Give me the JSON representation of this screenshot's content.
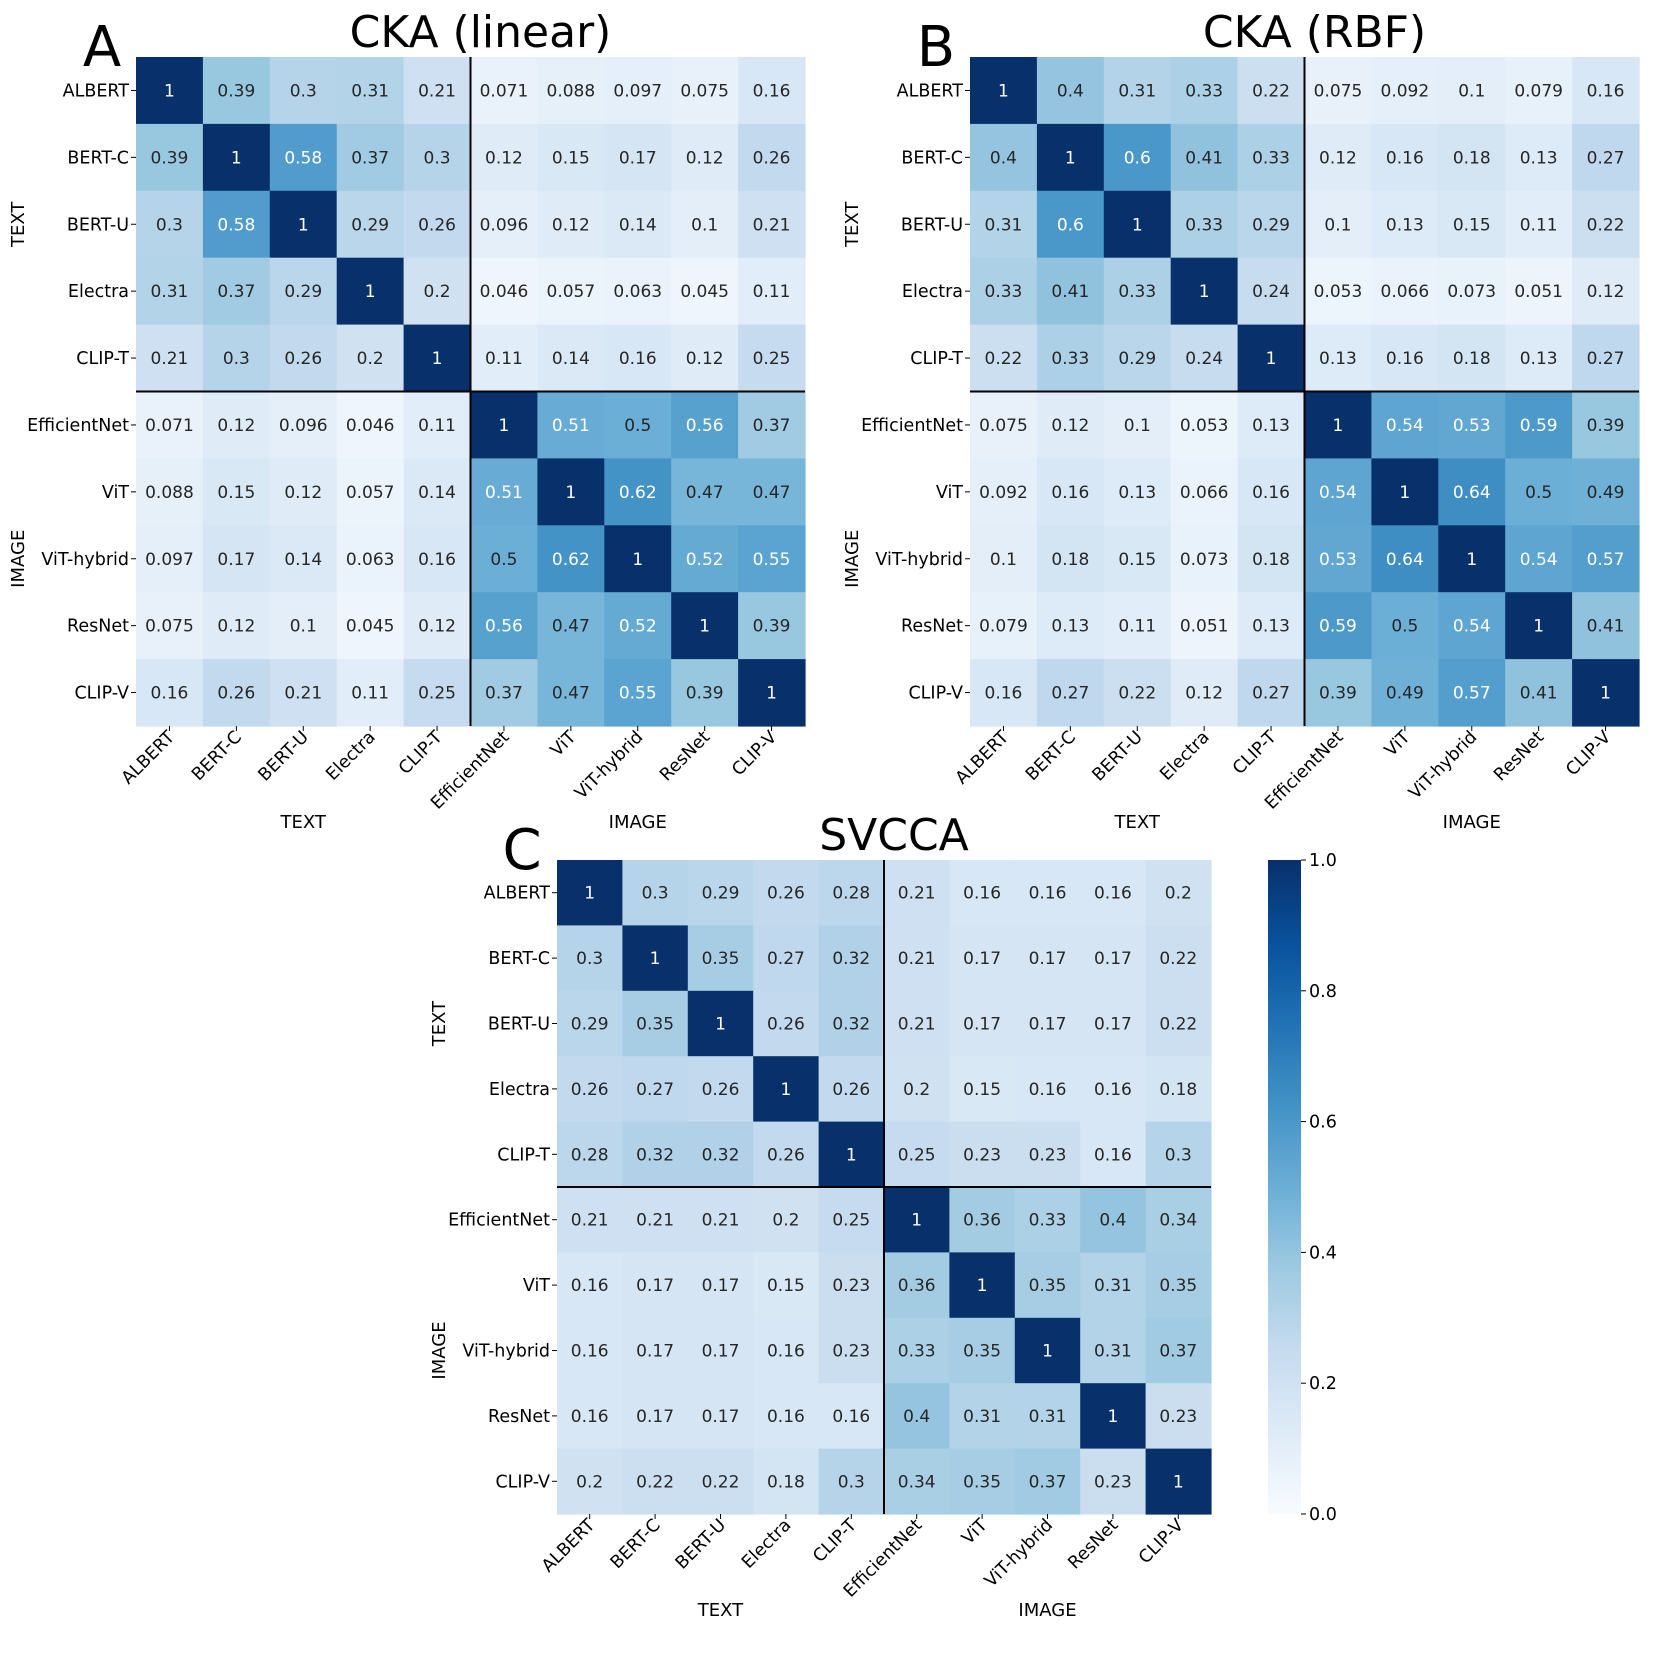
{
  "figure": {
    "panel_letters": [
      "A",
      "B",
      "C"
    ],
    "colorbar": {
      "min": 0.0,
      "max": 1.0,
      "ticks": [
        "0.0",
        "0.2",
        "0.4",
        "0.6",
        "0.8",
        "1.0"
      ],
      "colormap": "Blues",
      "colors": [
        "#f7fbff",
        "#deebf7",
        "#c6dbef",
        "#9ecae1",
        "#6baed6",
        "#4292c6",
        "#2171b5",
        "#08519c",
        "#08306b"
      ]
    }
  },
  "chart_data": [
    {
      "type": "heatmap",
      "panel": "A",
      "title": "CKA (linear)",
      "rows": [
        "ALBERT",
        "BERT-C",
        "BERT-U",
        "Electra",
        "CLIP-T",
        "EfficientNet",
        "ViT",
        "ViT-hybrid",
        "ResNet",
        "CLIP-V"
      ],
      "columns": [
        "ALBERT",
        "BERT-C",
        "BERT-U",
        "Electra",
        "CLIP-T",
        "EfficientNet",
        "ViT",
        "ViT-hybrid",
        "ResNet",
        "CLIP-V"
      ],
      "xlabel_groups": [
        "TEXT",
        "IMAGE"
      ],
      "ylabel_groups": [
        "TEXT",
        "IMAGE"
      ],
      "values": [
        [
          "1",
          "0.39",
          "0.3",
          "0.31",
          "0.21",
          "0.071",
          "0.088",
          "0.097",
          "0.075",
          "0.16"
        ],
        [
          "0.39",
          "1",
          "0.58",
          "0.37",
          "0.3",
          "0.12",
          "0.15",
          "0.17",
          "0.12",
          "0.26"
        ],
        [
          "0.3",
          "0.58",
          "1",
          "0.29",
          "0.26",
          "0.096",
          "0.12",
          "0.14",
          "0.1",
          "0.21"
        ],
        [
          "0.31",
          "0.37",
          "0.29",
          "1",
          "0.2",
          "0.046",
          "0.057",
          "0.063",
          "0.045",
          "0.11"
        ],
        [
          "0.21",
          "0.3",
          "0.26",
          "0.2",
          "1",
          "0.11",
          "0.14",
          "0.16",
          "0.12",
          "0.25"
        ],
        [
          "0.071",
          "0.12",
          "0.096",
          "0.046",
          "0.11",
          "1",
          "0.51",
          "0.5",
          "0.56",
          "0.37"
        ],
        [
          "0.088",
          "0.15",
          "0.12",
          "0.057",
          "0.14",
          "0.51",
          "1",
          "0.62",
          "0.47",
          "0.47"
        ],
        [
          "0.097",
          "0.17",
          "0.14",
          "0.063",
          "0.16",
          "0.5",
          "0.62",
          "1",
          "0.52",
          "0.55"
        ],
        [
          "0.075",
          "0.12",
          "0.1",
          "0.045",
          "0.12",
          "0.56",
          "0.47",
          "0.52",
          "1",
          "0.39"
        ],
        [
          "0.16",
          "0.26",
          "0.21",
          "0.11",
          "0.25",
          "0.37",
          "0.47",
          "0.55",
          "0.39",
          "1"
        ]
      ]
    },
    {
      "type": "heatmap",
      "panel": "B",
      "title": "CKA (RBF)",
      "rows": [
        "ALBERT",
        "BERT-C",
        "BERT-U",
        "Electra",
        "CLIP-T",
        "EfficientNet",
        "ViT",
        "ViT-hybrid",
        "ResNet",
        "CLIP-V"
      ],
      "columns": [
        "ALBERT",
        "BERT-C",
        "BERT-U",
        "Electra",
        "CLIP-T",
        "EfficientNet",
        "ViT",
        "ViT-hybrid",
        "ResNet",
        "CLIP-V"
      ],
      "xlabel_groups": [
        "TEXT",
        "IMAGE"
      ],
      "ylabel_groups": [
        "TEXT",
        "IMAGE"
      ],
      "values": [
        [
          "1",
          "0.4",
          "0.31",
          "0.33",
          "0.22",
          "0.075",
          "0.092",
          "0.1",
          "0.079",
          "0.16"
        ],
        [
          "0.4",
          "1",
          "0.6",
          "0.41",
          "0.33",
          "0.12",
          "0.16",
          "0.18",
          "0.13",
          "0.27"
        ],
        [
          "0.31",
          "0.6",
          "1",
          "0.33",
          "0.29",
          "0.1",
          "0.13",
          "0.15",
          "0.11",
          "0.22"
        ],
        [
          "0.33",
          "0.41",
          "0.33",
          "1",
          "0.24",
          "0.053",
          "0.066",
          "0.073",
          "0.051",
          "0.12"
        ],
        [
          "0.22",
          "0.33",
          "0.29",
          "0.24",
          "1",
          "0.13",
          "0.16",
          "0.18",
          "0.13",
          "0.27"
        ],
        [
          "0.075",
          "0.12",
          "0.1",
          "0.053",
          "0.13",
          "1",
          "0.54",
          "0.53",
          "0.59",
          "0.39"
        ],
        [
          "0.092",
          "0.16",
          "0.13",
          "0.066",
          "0.16",
          "0.54",
          "1",
          "0.64",
          "0.5",
          "0.49"
        ],
        [
          "0.1",
          "0.18",
          "0.15",
          "0.073",
          "0.18",
          "0.53",
          "0.64",
          "1",
          "0.54",
          "0.57"
        ],
        [
          "0.079",
          "0.13",
          "0.11",
          "0.051",
          "0.13",
          "0.59",
          "0.5",
          "0.54",
          "1",
          "0.41"
        ],
        [
          "0.16",
          "0.27",
          "0.22",
          "0.12",
          "0.27",
          "0.39",
          "0.49",
          "0.57",
          "0.41",
          "1"
        ]
      ]
    },
    {
      "type": "heatmap",
      "panel": "C",
      "title": "SVCCA",
      "rows": [
        "ALBERT",
        "BERT-C",
        "BERT-U",
        "Electra",
        "CLIP-T",
        "EfficientNet",
        "ViT",
        "ViT-hybrid",
        "ResNet",
        "CLIP-V"
      ],
      "columns": [
        "ALBERT",
        "BERT-C",
        "BERT-U",
        "Electra",
        "CLIP-T",
        "EfficientNet",
        "ViT",
        "ViT-hybrid",
        "ResNet",
        "CLIP-V"
      ],
      "xlabel_groups": [
        "TEXT",
        "IMAGE"
      ],
      "ylabel_groups": [
        "TEXT",
        "IMAGE"
      ],
      "values": [
        [
          "1",
          "0.3",
          "0.29",
          "0.26",
          "0.28",
          "0.21",
          "0.16",
          "0.16",
          "0.16",
          "0.2"
        ],
        [
          "0.3",
          "1",
          "0.35",
          "0.27",
          "0.32",
          "0.21",
          "0.17",
          "0.17",
          "0.17",
          "0.22"
        ],
        [
          "0.29",
          "0.35",
          "1",
          "0.26",
          "0.32",
          "0.21",
          "0.17",
          "0.17",
          "0.17",
          "0.22"
        ],
        [
          "0.26",
          "0.27",
          "0.26",
          "1",
          "0.26",
          "0.2",
          "0.15",
          "0.16",
          "0.16",
          "0.18"
        ],
        [
          "0.28",
          "0.32",
          "0.32",
          "0.26",
          "1",
          "0.25",
          "0.23",
          "0.23",
          "0.16",
          "0.3"
        ],
        [
          "0.21",
          "0.21",
          "0.21",
          "0.2",
          "0.25",
          "1",
          "0.36",
          "0.33",
          "0.4",
          "0.34"
        ],
        [
          "0.16",
          "0.17",
          "0.17",
          "0.15",
          "0.23",
          "0.36",
          "1",
          "0.35",
          "0.31",
          "0.35"
        ],
        [
          "0.16",
          "0.17",
          "0.17",
          "0.16",
          "0.23",
          "0.33",
          "0.35",
          "1",
          "0.31",
          "0.37"
        ],
        [
          "0.16",
          "0.17",
          "0.17",
          "0.16",
          "0.16",
          "0.4",
          "0.31",
          "0.31",
          "1",
          "0.23"
        ],
        [
          "0.2",
          "0.22",
          "0.22",
          "0.18",
          "0.3",
          "0.34",
          "0.35",
          "0.37",
          "0.23",
          "1"
        ]
      ]
    }
  ]
}
